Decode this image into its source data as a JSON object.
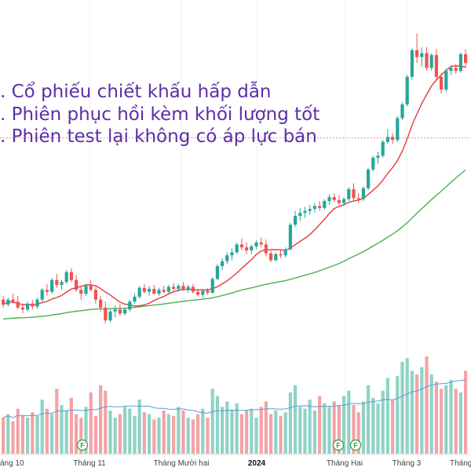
{
  "colors": {
    "up": "#26a69a",
    "down": "#ef5350",
    "vol_up": "#8fd3c6",
    "vol_down": "#f4a3a6",
    "ma_short": "#e5393b",
    "ma_long": "#4caf50",
    "vol_ma": "#5b9bd5",
    "annotation": "#5b2ea6",
    "dotted_line": "#ef6c62",
    "flag": "#2e9e44"
  },
  "annotations": [
    ". Cổ phiếu chiết khấu hấp dẫn",
    ". Phiên phục hồi kèm khối lượng tốt",
    ". Phiên test lại không có áp lực bán"
  ],
  "x_axis": {
    "ticks": [
      "áng 10",
      "Tháng 11",
      "Tháng Mười hai",
      "2024",
      "Tháng Hai",
      "Tháng 3",
      "Tháng"
    ]
  },
  "flags": [
    "F",
    "F",
    "F"
  ],
  "chart_data": {
    "type": "candlestick",
    "price_reference_line": 57.4,
    "candles": [
      {
        "o": 41.0,
        "h": 41.4,
        "l": 40.2,
        "c": 40.5
      },
      {
        "o": 40.5,
        "h": 41.2,
        "l": 40.3,
        "c": 41.0
      },
      {
        "o": 41.0,
        "h": 41.6,
        "l": 40.6,
        "c": 40.8
      },
      {
        "o": 40.8,
        "h": 41.4,
        "l": 40.0,
        "c": 40.2
      },
      {
        "o": 40.2,
        "h": 40.6,
        "l": 39.6,
        "c": 40.0
      },
      {
        "o": 40.0,
        "h": 40.8,
        "l": 39.8,
        "c": 40.6
      },
      {
        "o": 40.6,
        "h": 41.0,
        "l": 40.0,
        "c": 40.3
      },
      {
        "o": 40.3,
        "h": 41.2,
        "l": 40.1,
        "c": 41.0
      },
      {
        "o": 41.0,
        "h": 42.2,
        "l": 40.8,
        "c": 42.0
      },
      {
        "o": 42.0,
        "h": 42.6,
        "l": 41.4,
        "c": 41.8
      },
      {
        "o": 41.8,
        "h": 43.2,
        "l": 41.6,
        "c": 43.0
      },
      {
        "o": 43.0,
        "h": 43.6,
        "l": 42.2,
        "c": 42.5
      },
      {
        "o": 42.5,
        "h": 43.0,
        "l": 42.0,
        "c": 42.8
      },
      {
        "o": 42.8,
        "h": 44.0,
        "l": 42.6,
        "c": 43.8
      },
      {
        "o": 43.8,
        "h": 44.2,
        "l": 42.8,
        "c": 43.0
      },
      {
        "o": 43.0,
        "h": 43.5,
        "l": 41.8,
        "c": 42.0
      },
      {
        "o": 42.0,
        "h": 42.4,
        "l": 41.0,
        "c": 41.6
      },
      {
        "o": 41.6,
        "h": 42.6,
        "l": 41.4,
        "c": 42.4
      },
      {
        "o": 42.4,
        "h": 43.0,
        "l": 41.8,
        "c": 42.0
      },
      {
        "o": 42.0,
        "h": 42.3,
        "l": 40.6,
        "c": 41.0
      },
      {
        "o": 41.0,
        "h": 41.4,
        "l": 39.8,
        "c": 40.2
      },
      {
        "o": 40.2,
        "h": 40.8,
        "l": 38.6,
        "c": 38.9
      },
      {
        "o": 38.9,
        "h": 40.0,
        "l": 38.7,
        "c": 39.8
      },
      {
        "o": 39.8,
        "h": 40.4,
        "l": 39.2,
        "c": 40.0
      },
      {
        "o": 40.0,
        "h": 40.6,
        "l": 39.4,
        "c": 39.6
      },
      {
        "o": 39.6,
        "h": 40.2,
        "l": 39.4,
        "c": 40.0
      },
      {
        "o": 40.0,
        "h": 41.0,
        "l": 39.8,
        "c": 40.8
      },
      {
        "o": 40.8,
        "h": 41.6,
        "l": 40.6,
        "c": 41.3
      },
      {
        "o": 41.3,
        "h": 42.4,
        "l": 41.1,
        "c": 42.2
      },
      {
        "o": 42.2,
        "h": 42.6,
        "l": 41.6,
        "c": 41.8
      },
      {
        "o": 41.8,
        "h": 42.4,
        "l": 41.4,
        "c": 42.1
      },
      {
        "o": 42.1,
        "h": 42.5,
        "l": 41.5,
        "c": 41.6
      },
      {
        "o": 41.6,
        "h": 42.2,
        "l": 41.4,
        "c": 42.0
      },
      {
        "o": 42.0,
        "h": 42.4,
        "l": 41.6,
        "c": 41.8
      },
      {
        "o": 41.8,
        "h": 42.5,
        "l": 41.6,
        "c": 42.3
      },
      {
        "o": 42.3,
        "h": 42.7,
        "l": 41.9,
        "c": 42.1
      },
      {
        "o": 42.1,
        "h": 42.6,
        "l": 41.8,
        "c": 42.4
      },
      {
        "o": 42.4,
        "h": 42.8,
        "l": 41.9,
        "c": 42.0
      },
      {
        "o": 42.0,
        "h": 42.5,
        "l": 41.7,
        "c": 42.3
      },
      {
        "o": 42.3,
        "h": 42.6,
        "l": 41.6,
        "c": 41.8
      },
      {
        "o": 41.8,
        "h": 42.1,
        "l": 41.3,
        "c": 41.5
      },
      {
        "o": 41.5,
        "h": 42.0,
        "l": 41.2,
        "c": 41.9
      },
      {
        "o": 41.9,
        "h": 42.2,
        "l": 41.5,
        "c": 41.7
      },
      {
        "o": 41.7,
        "h": 43.3,
        "l": 41.6,
        "c": 43.1
      },
      {
        "o": 43.1,
        "h": 44.6,
        "l": 43.0,
        "c": 44.4
      },
      {
        "o": 44.4,
        "h": 45.2,
        "l": 44.0,
        "c": 44.9
      },
      {
        "o": 44.9,
        "h": 45.8,
        "l": 44.6,
        "c": 45.5
      },
      {
        "o": 45.5,
        "h": 46.2,
        "l": 45.0,
        "c": 45.8
      },
      {
        "o": 45.8,
        "h": 46.8,
        "l": 45.6,
        "c": 46.6
      },
      {
        "o": 46.6,
        "h": 47.2,
        "l": 46.0,
        "c": 46.3
      },
      {
        "o": 46.3,
        "h": 46.8,
        "l": 45.6,
        "c": 46.0
      },
      {
        "o": 46.0,
        "h": 46.6,
        "l": 45.6,
        "c": 46.4
      },
      {
        "o": 46.4,
        "h": 47.0,
        "l": 46.1,
        "c": 46.8
      },
      {
        "o": 46.8,
        "h": 47.3,
        "l": 46.3,
        "c": 46.6
      },
      {
        "o": 46.6,
        "h": 47.1,
        "l": 45.4,
        "c": 45.7
      },
      {
        "o": 45.7,
        "h": 46.0,
        "l": 44.8,
        "c": 45.0
      },
      {
        "o": 45.0,
        "h": 45.8,
        "l": 44.9,
        "c": 45.6
      },
      {
        "o": 45.6,
        "h": 46.0,
        "l": 45.2,
        "c": 45.5
      },
      {
        "o": 45.5,
        "h": 46.3,
        "l": 45.3,
        "c": 46.1
      },
      {
        "o": 46.1,
        "h": 48.8,
        "l": 46.0,
        "c": 48.6
      },
      {
        "o": 48.6,
        "h": 50.0,
        "l": 48.4,
        "c": 49.5
      },
      {
        "o": 49.5,
        "h": 50.3,
        "l": 49.0,
        "c": 49.8
      },
      {
        "o": 49.8,
        "h": 50.4,
        "l": 49.3,
        "c": 50.0
      },
      {
        "o": 50.0,
        "h": 50.6,
        "l": 49.6,
        "c": 50.2
      },
      {
        "o": 50.2,
        "h": 50.8,
        "l": 49.8,
        "c": 50.5
      },
      {
        "o": 50.5,
        "h": 51.0,
        "l": 50.0,
        "c": 50.3
      },
      {
        "o": 50.3,
        "h": 51.2,
        "l": 50.1,
        "c": 51.0
      },
      {
        "o": 51.0,
        "h": 51.7,
        "l": 50.6,
        "c": 51.4
      },
      {
        "o": 51.4,
        "h": 51.8,
        "l": 50.9,
        "c": 51.1
      },
      {
        "o": 51.1,
        "h": 51.6,
        "l": 50.6,
        "c": 50.8
      },
      {
        "o": 50.8,
        "h": 51.4,
        "l": 50.5,
        "c": 51.2
      },
      {
        "o": 51.2,
        "h": 52.4,
        "l": 51.0,
        "c": 52.2
      },
      {
        "o": 52.2,
        "h": 52.8,
        "l": 51.0,
        "c": 51.3
      },
      {
        "o": 51.3,
        "h": 51.8,
        "l": 50.8,
        "c": 51.2
      },
      {
        "o": 51.2,
        "h": 52.5,
        "l": 51.0,
        "c": 52.3
      },
      {
        "o": 52.3,
        "h": 54.4,
        "l": 52.1,
        "c": 54.2
      },
      {
        "o": 54.2,
        "h": 55.6,
        "l": 54.0,
        "c": 55.4
      },
      {
        "o": 55.4,
        "h": 56.0,
        "l": 54.8,
        "c": 55.6
      },
      {
        "o": 55.6,
        "h": 57.2,
        "l": 55.4,
        "c": 57.0
      },
      {
        "o": 57.0,
        "h": 58.3,
        "l": 56.8,
        "c": 57.5
      },
      {
        "o": 57.5,
        "h": 57.9,
        "l": 56.8,
        "c": 57.2
      },
      {
        "o": 57.2,
        "h": 59.6,
        "l": 57.0,
        "c": 59.4
      },
      {
        "o": 59.4,
        "h": 61.0,
        "l": 59.2,
        "c": 60.8
      },
      {
        "o": 60.8,
        "h": 63.8,
        "l": 60.6,
        "c": 63.6
      },
      {
        "o": 63.6,
        "h": 66.5,
        "l": 63.3,
        "c": 66.3
      },
      {
        "o": 66.3,
        "h": 68.0,
        "l": 65.0,
        "c": 65.6
      },
      {
        "o": 65.6,
        "h": 66.6,
        "l": 64.6,
        "c": 66.0
      },
      {
        "o": 66.0,
        "h": 66.6,
        "l": 64.2,
        "c": 64.5
      },
      {
        "o": 64.5,
        "h": 66.0,
        "l": 64.2,
        "c": 65.8
      },
      {
        "o": 65.8,
        "h": 66.4,
        "l": 63.2,
        "c": 63.6
      },
      {
        "o": 63.6,
        "h": 64.0,
        "l": 61.9,
        "c": 62.3
      },
      {
        "o": 62.3,
        "h": 64.4,
        "l": 62.1,
        "c": 64.2
      },
      {
        "o": 64.2,
        "h": 64.8,
        "l": 63.8,
        "c": 64.5
      },
      {
        "o": 64.5,
        "h": 64.9,
        "l": 63.9,
        "c": 64.2
      },
      {
        "o": 64.2,
        "h": 66.1,
        "l": 64.0,
        "c": 65.9
      },
      {
        "o": 65.9,
        "h": 66.4,
        "l": 64.5,
        "c": 65.0
      }
    ],
    "volume": [
      2.0,
      2.2,
      1.8,
      2.5,
      2.1,
      2.0,
      2.3,
      2.1,
      3.0,
      2.5,
      2.2,
      3.6,
      2.7,
      2.4,
      3.1,
      2.2,
      2.0,
      2.6,
      3.4,
      2.1,
      3.8,
      3.5,
      2.4,
      2.0,
      2.2,
      2.6,
      2.5,
      2.1,
      3.0,
      2.3,
      2.2,
      1.9,
      2.0,
      2.4,
      2.2,
      2.1,
      2.6,
      2.4,
      2.0,
      1.9,
      2.2,
      2.5,
      2.0,
      3.6,
      3.2,
      2.6,
      2.9,
      2.4,
      2.8,
      2.2,
      2.4,
      2.5,
      2.0,
      2.6,
      2.9,
      2.2,
      2.4,
      2.1,
      2.3,
      3.4,
      3.8,
      2.6,
      2.5,
      3.0,
      2.4,
      3.2,
      2.8,
      2.6,
      2.9,
      2.7,
      3.2,
      3.5,
      2.7,
      2.3,
      2.9,
      3.8,
      3.1,
      2.8,
      3.5,
      4.2,
      3.0,
      4.3,
      5.1,
      5.3,
      4.6,
      4.4,
      4.8,
      5.4,
      4.4,
      4.0,
      3.6,
      3.8,
      4.1,
      3.6,
      3.4,
      4.6
    ],
    "ma_short_period": 10,
    "ma_long_period": 50,
    "vol_ma_period": 20,
    "ylim": [
      37,
      69
    ]
  }
}
